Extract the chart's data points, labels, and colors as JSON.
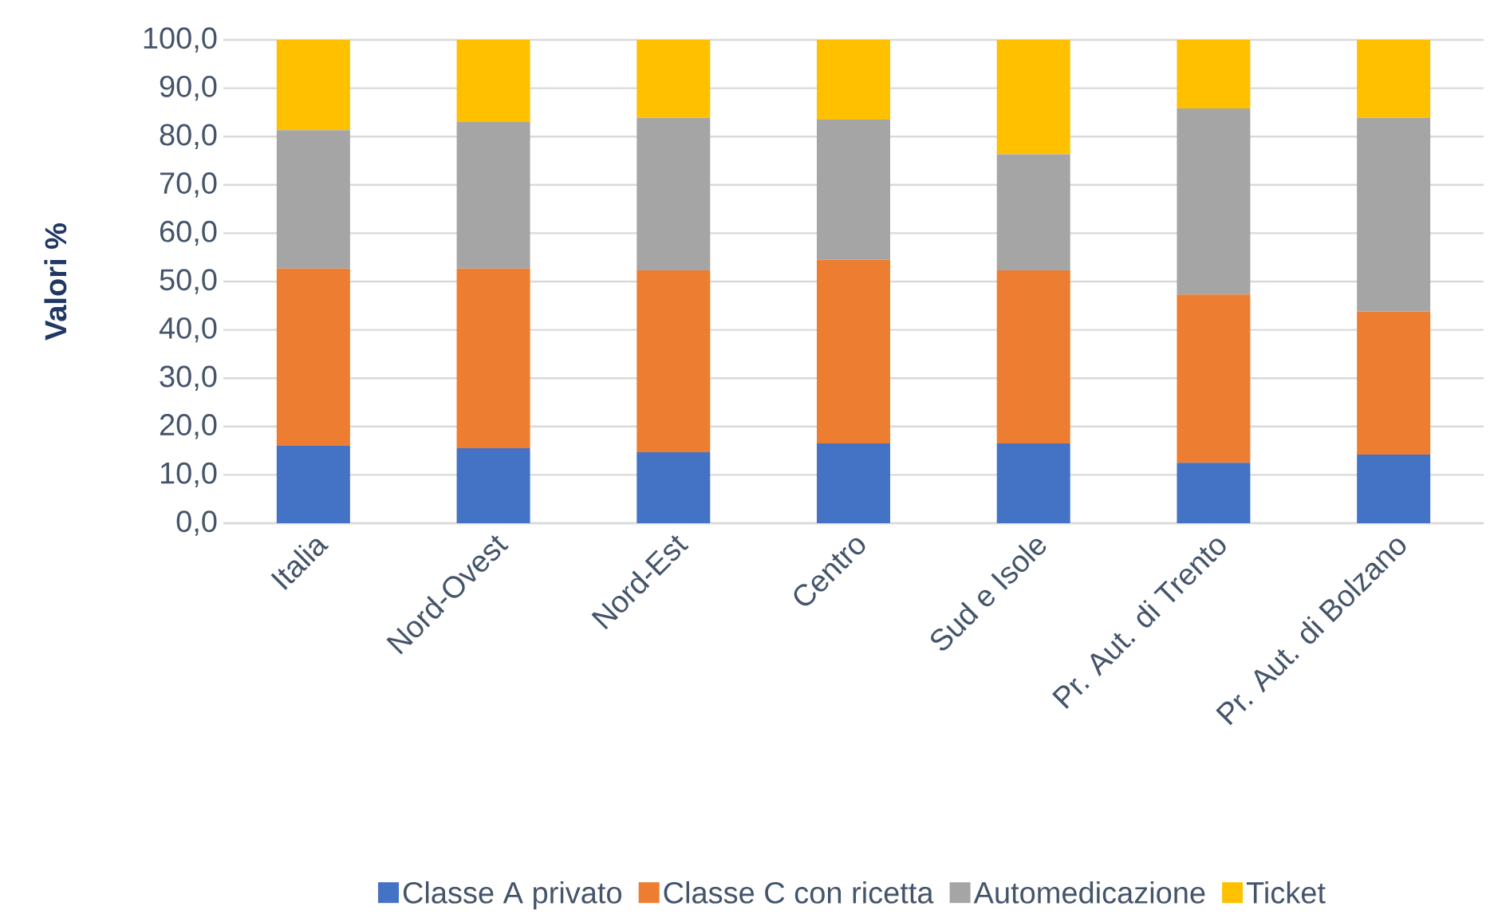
{
  "chart_data": {
    "type": "bar",
    "stacked": true,
    "ylabel": "Valori %",
    "categories": [
      "Italia",
      "Nord-Ovest",
      "Nord-Est",
      "Centro",
      "Sud e Isole",
      "Pr. Aut. di Trento",
      "Pr. Aut. di Bolzano"
    ],
    "series": [
      {
        "name": "Classe A privato",
        "color": "#4472c4",
        "values": [
          16.0,
          15.5,
          14.7,
          16.5,
          16.5,
          12.5,
          14.2
        ]
      },
      {
        "name": "Classe C con ricetta",
        "color": "#ed7d31",
        "values": [
          36.7,
          37.2,
          37.6,
          38.0,
          35.8,
          34.8,
          29.6
        ]
      },
      {
        "name": "Automedicazione",
        "color": "#a5a5a5",
        "values": [
          28.6,
          30.3,
          31.6,
          29.0,
          24.0,
          38.5,
          40.1
        ]
      },
      {
        "name": "Ticket",
        "color": "#ffc000",
        "values": [
          18.7,
          17.0,
          16.1,
          16.5,
          23.7,
          14.2,
          16.1
        ]
      }
    ],
    "ylim": [
      0,
      100
    ],
    "yticks": [
      {
        "value": 0,
        "label": "0,0"
      },
      {
        "value": 10,
        "label": "10,0"
      },
      {
        "value": 20,
        "label": "20,0"
      },
      {
        "value": 30,
        "label": "30,0"
      },
      {
        "value": 40,
        "label": "40,0"
      },
      {
        "value": 50,
        "label": "50,0"
      },
      {
        "value": 60,
        "label": "60,0"
      },
      {
        "value": 70,
        "label": "70,0"
      },
      {
        "value": 80,
        "label": "80,0"
      },
      {
        "value": 90,
        "label": "90,0"
      },
      {
        "value": 100,
        "label": "100,0"
      }
    ],
    "grid": "y",
    "legend": "bottom"
  }
}
